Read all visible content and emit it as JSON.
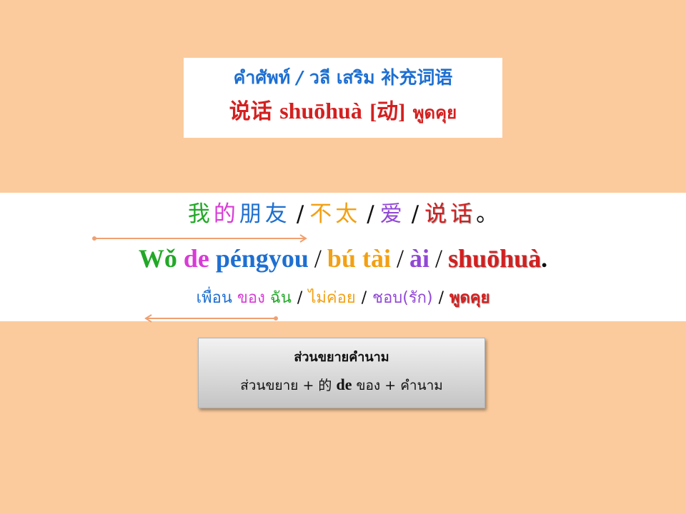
{
  "title": {
    "thai_vocab": "คำศัพท์",
    "separator": "/",
    "thai_extra": "วลี เสริม",
    "chinese_extra": "补充词语",
    "word": "说话",
    "pinyin": "shuōhuà",
    "pos": "[动]",
    "meaning": "พูดคุย"
  },
  "sentence": {
    "chinese": [
      {
        "text": "我",
        "color": "#22a827"
      },
      {
        "text": "的",
        "color": "#d83bd6"
      },
      {
        "text": "朋友",
        "color": "#1e6fd1"
      },
      {
        "text": "/",
        "color": "#111111"
      },
      {
        "text": "不太",
        "color": "#f2a014"
      },
      {
        "text": "/",
        "color": "#111111"
      },
      {
        "text": "爱",
        "color": "#9147d6"
      },
      {
        "text": "/",
        "color": "#111111"
      },
      {
        "text": "说话",
        "color": "#d32020"
      },
      {
        "text": "。",
        "color": "#111111"
      }
    ],
    "pinyin": [
      {
        "text": "Wǒ",
        "color": "#22a827"
      },
      {
        "text": "de",
        "color": "#d83bd6"
      },
      {
        "text": "péngyou",
        "color": "#1e6fd1"
      },
      {
        "text": "/",
        "color": "#111111"
      },
      {
        "text": "bú tài",
        "color": "#f2a014"
      },
      {
        "text": "/",
        "color": "#111111"
      },
      {
        "text": "ài",
        "color": "#9147d6"
      },
      {
        "text": "/",
        "color": "#111111"
      },
      {
        "text": "shuōhuà",
        "color": "#d32020"
      },
      {
        "text": ".",
        "color": "#111111"
      }
    ],
    "thai": [
      {
        "text": "เพื่อน",
        "color": "#1e6fd1"
      },
      {
        "text": "ของ",
        "color": "#d83bd6"
      },
      {
        "text": "ฉัน",
        "color": "#22a827"
      },
      {
        "text": "/",
        "color": "#111111"
      },
      {
        "text": "ไม่ค่อย",
        "color": "#f2a014"
      },
      {
        "text": "/",
        "color": "#111111"
      },
      {
        "text": "ชอบ(รัก)",
        "color": "#9147d6"
      },
      {
        "text": "/",
        "color": "#111111"
      },
      {
        "text": "พูดคุย",
        "color": "#d32020"
      }
    ]
  },
  "grammar_box": {
    "title": "ส่วนขยายคำนาม",
    "formula_part1": "ส่วนขยาย",
    "plus1": "+",
    "de_char": "的",
    "de_pinyin": "de",
    "de_thai": "ของ",
    "plus2": "+",
    "formula_part2": "คำนาม"
  },
  "colors": {
    "background": "#fbcb9d",
    "arrow": "#f0a070"
  }
}
